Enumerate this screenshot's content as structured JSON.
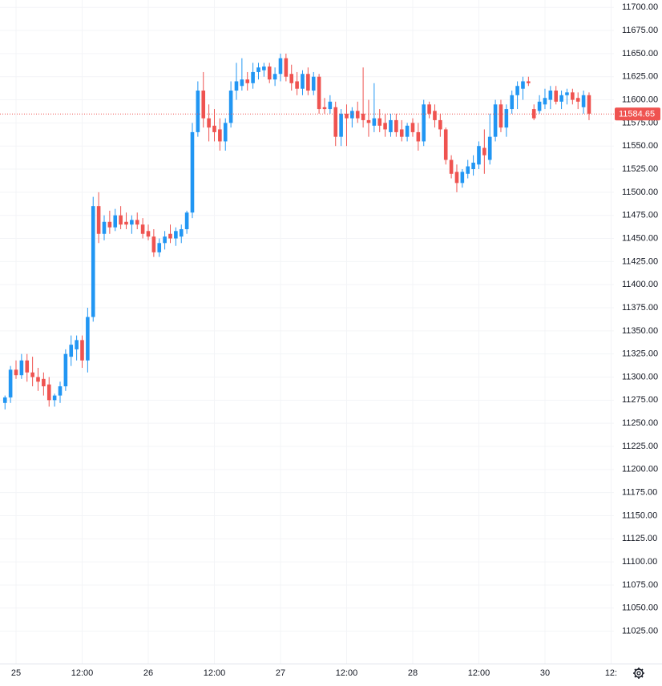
{
  "chart_data": {
    "type": "candlestick",
    "categories": [
      null,
      null,
      "25",
      null,
      null,
      null,
      null,
      null,
      null,
      null,
      null,
      null,
      null,
      null,
      "12:00",
      null,
      null,
      null,
      null,
      null,
      null,
      null,
      null,
      null,
      null,
      null,
      "26",
      null,
      null,
      null,
      null,
      null,
      null,
      null,
      null,
      null,
      null,
      null,
      "12:00",
      null,
      null,
      null,
      null,
      null,
      null,
      null,
      null,
      null,
      null,
      null,
      "27",
      null,
      null,
      null,
      null,
      null,
      null,
      null,
      null,
      null,
      null,
      null,
      "12:00",
      null,
      null,
      null,
      null,
      null,
      null,
      null,
      null,
      null,
      null,
      null,
      "28",
      null,
      null,
      null,
      null,
      null,
      null,
      null,
      null,
      null,
      null,
      null,
      "12:00",
      null,
      null,
      null,
      null,
      null,
      null,
      null,
      null,
      null,
      null,
      null,
      "30",
      null,
      null,
      null,
      null,
      null,
      null,
      null,
      null,
      null,
      null,
      null,
      "12:"
    ],
    "open": [
      11272,
      11278,
      11308,
      11302,
      11318,
      11305,
      11300,
      11298,
      11292,
      11275,
      11280,
      11290,
      11322,
      11330,
      11340,
      11318,
      11365,
      11485,
      11455,
      11468,
      11462,
      11475,
      11468,
      11465,
      11470,
      11465,
      11458,
      11452,
      11435,
      11445,
      11455,
      11450,
      11452,
      11460,
      11478,
      11565,
      11610,
      11580,
      11572,
      11568,
      11555,
      11575,
      11610,
      11615,
      11622,
      11618,
      11630,
      11632,
      11636,
      11622,
      11628,
      11645,
      11628,
      11620,
      11612,
      11628,
      11610,
      11625,
      11592,
      11590,
      11592,
      11560,
      11585,
      11580,
      11588,
      11585,
      11578,
      11572,
      11580,
      11575,
      11565,
      11578,
      11568,
      11560,
      11575,
      11565,
      11555,
      11595,
      11588,
      11578,
      11568,
      11535,
      11522,
      11510,
      11520,
      11525,
      11530,
      11548,
      11535,
      11560,
      11595,
      11570,
      11590,
      11605,
      11612,
      11620,
      11590,
      11588,
      11595,
      11600,
      11610,
      11598,
      11605,
      11608,
      11602,
      11592,
      11605,
      null,
      null,
      null,
      null
    ],
    "high": [
      11280,
      11312,
      11318,
      11325,
      11325,
      11322,
      11310,
      11305,
      11300,
      11282,
      11295,
      11330,
      11345,
      11345,
      11345,
      11375,
      11495,
      11500,
      11475,
      11480,
      11482,
      11485,
      11478,
      11475,
      11478,
      11472,
      11465,
      11460,
      11450,
      11458,
      11465,
      11462,
      11465,
      11480,
      11575,
      11620,
      11630,
      11595,
      11590,
      11580,
      11580,
      11620,
      11640,
      11645,
      11630,
      11640,
      11640,
      11640,
      11640,
      11635,
      11650,
      11650,
      11638,
      11630,
      11632,
      11635,
      11630,
      11628,
      11602,
      11605,
      11598,
      11590,
      11595,
      11592,
      11598,
      11635,
      11600,
      11618,
      11590,
      11585,
      11585,
      11585,
      11578,
      11575,
      11580,
      11575,
      11600,
      11598,
      11595,
      11585,
      11570,
      11540,
      11530,
      11525,
      11535,
      11540,
      11555,
      11568,
      11585,
      11600,
      11600,
      11595,
      11610,
      11620,
      11625,
      11625,
      11595,
      11605,
      11612,
      11615,
      11615,
      11610,
      11612,
      11612,
      11608,
      11610,
      11608,
      null,
      null,
      null,
      null
    ],
    "low": [
      11265,
      11272,
      11298,
      11298,
      11295,
      11290,
      11285,
      11280,
      11268,
      11268,
      11272,
      11285,
      11312,
      11318,
      11310,
      11305,
      11360,
      11445,
      11448,
      11455,
      11458,
      11460,
      11460,
      11455,
      11460,
      11450,
      11448,
      11430,
      11430,
      11438,
      11445,
      11442,
      11445,
      11455,
      11472,
      11560,
      11570,
      11555,
      11555,
      11545,
      11545,
      11570,
      11600,
      11610,
      11610,
      11612,
      11622,
      11625,
      11618,
      11615,
      11620,
      11620,
      11610,
      11605,
      11605,
      11605,
      11605,
      11585,
      11585,
      11585,
      11550,
      11550,
      11550,
      11570,
      11575,
      11570,
      11560,
      11565,
      11565,
      11560,
      11560,
      11560,
      11555,
      11555,
      11560,
      11545,
      11550,
      11580,
      11570,
      11560,
      11530,
      11515,
      11500,
      11505,
      11515,
      11518,
      11525,
      11520,
      11530,
      11555,
      11565,
      11560,
      11585,
      11590,
      11600,
      11615,
      11578,
      11585,
      11590,
      11590,
      11595,
      11590,
      11595,
      11595,
      11590,
      11585,
      11578,
      null,
      null,
      null,
      null
    ],
    "close": [
      11278,
      11308,
      11302,
      11318,
      11305,
      11300,
      11295,
      11290,
      11275,
      11280,
      11290,
      11325,
      11335,
      11340,
      11318,
      11365,
      11485,
      11455,
      11468,
      11462,
      11475,
      11465,
      11465,
      11470,
      11465,
      11455,
      11452,
      11435,
      11445,
      11452,
      11450,
      11458,
      11460,
      11478,
      11565,
      11610,
      11580,
      11570,
      11565,
      11555,
      11575,
      11610,
      11620,
      11622,
      11618,
      11630,
      11635,
      11636,
      11622,
      11628,
      11645,
      11625,
      11618,
      11612,
      11628,
      11610,
      11625,
      11590,
      11590,
      11598,
      11560,
      11585,
      11580,
      11588,
      11580,
      11578,
      11575,
      11580,
      11572,
      11568,
      11578,
      11565,
      11560,
      11572,
      11565,
      11555,
      11595,
      11585,
      11578,
      11568,
      11535,
      11520,
      11510,
      11522,
      11528,
      11532,
      11550,
      11540,
      11560,
      11595,
      11570,
      11590,
      11605,
      11615,
      11620,
      11618,
      11580,
      11598,
      11602,
      11610,
      11598,
      11605,
      11608,
      11600,
      11598,
      11605,
      11585,
      null,
      null,
      null,
      null
    ],
    "up_color": "#2196f3",
    "down_color": "#ef5350",
    "last_price": {
      "value": 11584.65,
      "label": "11584.65"
    },
    "ylim": [
      10990,
      11708
    ],
    "yticks": [
      {
        "value": 11025,
        "label": "11025.00"
      },
      {
        "value": 11050,
        "label": "11050.00"
      },
      {
        "value": 11075,
        "label": "11075.00"
      },
      {
        "value": 11100,
        "label": "11100.00"
      },
      {
        "value": 11125,
        "label": "11125.00"
      },
      {
        "value": 11150,
        "label": "11150.00"
      },
      {
        "value": 11175,
        "label": "11175.00"
      },
      {
        "value": 11200,
        "label": "11200.00"
      },
      {
        "value": 11225,
        "label": "11225.00"
      },
      {
        "value": 11250,
        "label": "11250.00"
      },
      {
        "value": 11275,
        "label": "11275.00"
      },
      {
        "value": 11300,
        "label": "11300.00"
      },
      {
        "value": 11325,
        "label": "11325.00"
      },
      {
        "value": 11350,
        "label": "11350.00"
      },
      {
        "value": 11375,
        "label": "11375.00"
      },
      {
        "value": 11400,
        "label": "11400.00"
      },
      {
        "value": 11425,
        "label": "11425.00"
      },
      {
        "value": 11450,
        "label": "11450.00"
      },
      {
        "value": 11475,
        "label": "11475.00"
      },
      {
        "value": 11500,
        "label": "11500.00"
      },
      {
        "value": 11525,
        "label": "11525.00"
      },
      {
        "value": 11550,
        "label": "11550.00"
      },
      {
        "value": 11575,
        "label": "11575.00"
      },
      {
        "value": 11600,
        "label": "11600.00"
      },
      {
        "value": 11625,
        "label": "11625.00"
      },
      {
        "value": 11650,
        "label": "11650.00"
      },
      {
        "value": 11675,
        "label": "11675.00"
      },
      {
        "value": 11700,
        "label": "11700.00"
      }
    ],
    "grid": true
  }
}
